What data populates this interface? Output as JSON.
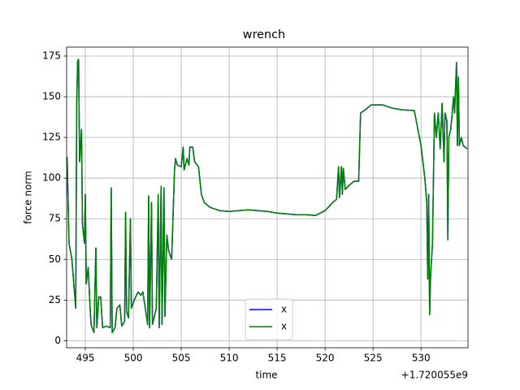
{
  "chart_data": {
    "type": "line",
    "title": "wrench",
    "x_label": "time",
    "y_label": "force norm",
    "x_offset_label": "+1.720055e9",
    "x": [
      493.1,
      493.3,
      493.6,
      494.0,
      494.1,
      494.2,
      494.3,
      494.4,
      494.6,
      494.7,
      494.9,
      495.0,
      495.1,
      495.3,
      495.5,
      495.6,
      495.9,
      496.1,
      496.2,
      496.4,
      496.6,
      496.8,
      497.2,
      497.6,
      497.7,
      497.8,
      498.1,
      498.3,
      498.6,
      498.8,
      499.1,
      499.2,
      499.3,
      499.5,
      499.7,
      499.8,
      500.1,
      500.5,
      500.8,
      501.0,
      501.5,
      501.6,
      501.7,
      501.9,
      502.0,
      502.4,
      502.6,
      502.7,
      502.9,
      503.0,
      503.2,
      503.3,
      503.5,
      503.7,
      504.0,
      504.3,
      504.4,
      504.6,
      505.0,
      505.2,
      505.3,
      505.6,
      505.8,
      505.9,
      506.2,
      506.4,
      506.8,
      507.1,
      507.4,
      508.0,
      509,
      510,
      511,
      512,
      513,
      514,
      515,
      516,
      517,
      518,
      519,
      520,
      520.8,
      521.2,
      521.4,
      521.5,
      521.7,
      521.8,
      521.9,
      522.1,
      522.6,
      523.0,
      523.5,
      523.7,
      524.2,
      524.8,
      526,
      527,
      528,
      529.3,
      530.0,
      530.4,
      530.6,
      530.7,
      530.8,
      530.9,
      531.0,
      531.2,
      531.4,
      531.6,
      531.8,
      532.0,
      532.2,
      532.4,
      532.5,
      532.7,
      532.8,
      532.9,
      533.1,
      533.4,
      533.5,
      533.7,
      533.8,
      533.9,
      534.0,
      534.2,
      534.4,
      534.8
    ],
    "series": [
      {
        "name": "x",
        "color": "#0000ff",
        "values": [
          113,
          60,
          50,
          20,
          145,
          172,
          173,
          110,
          130,
          72,
          60,
          90,
          35,
          45,
          20,
          10,
          5,
          57,
          8,
          27,
          27,
          8,
          9,
          8,
          94,
          5,
          8,
          20,
          22,
          9,
          12,
          79,
          18,
          14,
          75,
          20,
          25,
          30,
          28,
          30,
          10,
          89,
          8,
          85,
          10,
          20,
          90,
          8,
          95,
          10,
          94,
          15,
          65,
          55,
          50,
          105,
          112,
          108,
          107,
          119,
          105,
          112,
          108,
          119,
          119,
          110,
          107,
          90,
          85,
          82,
          80,
          79.5,
          80,
          80.5,
          80,
          79.5,
          78.5,
          78,
          77.5,
          77.5,
          77,
          80,
          85,
          87,
          107,
          88,
          107,
          90,
          106,
          93,
          96,
          98,
          98,
          140,
          142,
          145,
          145,
          143,
          142,
          141.5,
          120,
          100,
          85,
          38,
          90,
          16,
          40,
          60,
          140,
          125,
          140,
          118,
          146,
          110,
          140,
          135,
          62,
          125,
          130,
          150,
          140,
          171,
          120,
          162,
          120,
          125,
          120,
          118
        ]
      },
      {
        "name": "x",
        "color": "#008000",
        "values": [
          113,
          60,
          50,
          20,
          145,
          172,
          173,
          110,
          130,
          72,
          60,
          90,
          35,
          45,
          20,
          10,
          5,
          57,
          8,
          27,
          27,
          8,
          9,
          8,
          94,
          5,
          8,
          20,
          22,
          9,
          12,
          79,
          18,
          14,
          75,
          20,
          25,
          30,
          28,
          30,
          10,
          89,
          8,
          85,
          10,
          20,
          90,
          8,
          95,
          10,
          94,
          15,
          65,
          55,
          50,
          105,
          112,
          108,
          107,
          119,
          105,
          112,
          108,
          119,
          119,
          110,
          107,
          90,
          85,
          82,
          80,
          79.5,
          80,
          80.5,
          80,
          79.5,
          78.5,
          78,
          77.5,
          77.5,
          77,
          80,
          85,
          87,
          107,
          88,
          107,
          90,
          106,
          93,
          96,
          98,
          98,
          140,
          142,
          145,
          145,
          143,
          142,
          141.5,
          120,
          100,
          85,
          38,
          90,
          16,
          40,
          60,
          140,
          125,
          140,
          118,
          146,
          110,
          140,
          135,
          62,
          125,
          130,
          150,
          140,
          171,
          120,
          162,
          120,
          125,
          120,
          118
        ]
      }
    ],
    "xlim": [
      493.05,
      534.9
    ],
    "xticks": [
      495,
      500,
      505,
      510,
      515,
      520,
      525,
      530
    ],
    "ylim": [
      -4.3,
      180.5
    ],
    "yticks": [
      0,
      25,
      50,
      75,
      100,
      125,
      150,
      175
    ],
    "grid": true,
    "legend": "lower center"
  }
}
